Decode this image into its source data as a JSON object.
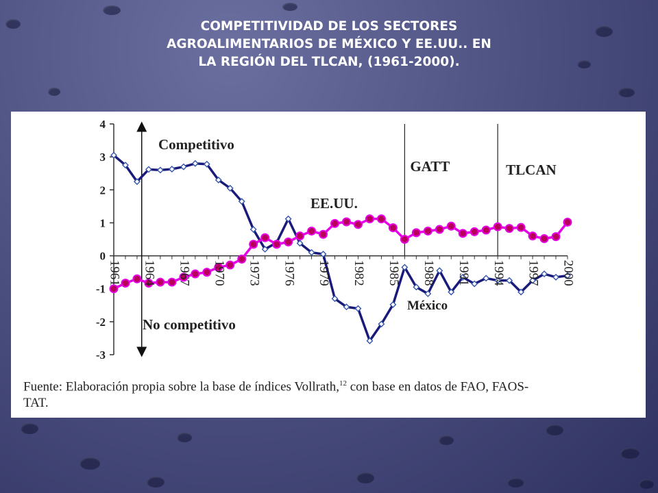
{
  "slide": {
    "title_lines": [
      "COMPETITIVIDAD DE LOS SECTORES",
      "AGROALIMENTARIOS DE MÉXICO Y EE.UU.. EN",
      "LA REGIÓN DEL TLCAN, (1961-2000)."
    ]
  },
  "figure": {
    "source_text_a": "Fuente: Elaboración propia sobre la base de índices Vollrath,",
    "source_sup": "12",
    "source_text_b": " con base en datos de FAO, FAOS-",
    "source_text_c": "TAT."
  },
  "chart_data": {
    "type": "line",
    "title": "",
    "xlabel": "",
    "ylabel": "",
    "ylim": [
      -3,
      4
    ],
    "xlim": [
      1961,
      2000
    ],
    "yticks": [
      "4",
      "3",
      "2",
      "1",
      "0",
      "-1",
      "-2",
      "-3"
    ],
    "xtick_labels": [
      "1961",
      "1964",
      "1967",
      "1970",
      "1973",
      "1976",
      "1979",
      "1982",
      "1985",
      "1988",
      "1991",
      "1994",
      "1997",
      "2000"
    ],
    "grid": false,
    "annotations": {
      "competitivo": "Competitivo",
      "no_competitivo": "No competitivo",
      "gatt": "GATT",
      "tlcan": "TLCAN",
      "usa_label": "EE.UU.",
      "mexico_label": "México"
    },
    "period_markers": [
      1986,
      1994
    ],
    "arrow_year": 1963.4,
    "x": [
      1961,
      1962,
      1963,
      1964,
      1965,
      1966,
      1967,
      1968,
      1969,
      1970,
      1971,
      1972,
      1973,
      1974,
      1975,
      1976,
      1977,
      1978,
      1979,
      1980,
      1981,
      1982,
      1983,
      1984,
      1985,
      1986,
      1987,
      1988,
      1989,
      1990,
      1991,
      1992,
      1993,
      1994,
      1995,
      1996,
      1997,
      1998,
      1999,
      2000
    ],
    "series": [
      {
        "name": "México",
        "color": "#1a1a7a",
        "marker": "open-diamond",
        "values": [
          3.05,
          2.75,
          2.25,
          2.62,
          2.6,
          2.63,
          2.7,
          2.8,
          2.78,
          2.3,
          2.05,
          1.65,
          0.8,
          0.2,
          0.4,
          1.12,
          0.38,
          0.1,
          0.05,
          -1.3,
          -1.55,
          -1.6,
          -2.58,
          -2.07,
          -1.48,
          -0.35,
          -0.95,
          -1.15,
          -0.45,
          -1.1,
          -0.65,
          -0.85,
          -0.68,
          -0.75,
          -0.75,
          -1.1,
          -0.75,
          -0.55,
          -0.65,
          -0.6
        ]
      },
      {
        "name": "EE.UU.",
        "color": "#e600e6",
        "marker": "filled-circle",
        "values": [
          -1.0,
          -0.83,
          -0.7,
          -0.83,
          -0.8,
          -0.8,
          -0.65,
          -0.55,
          -0.5,
          -0.35,
          -0.28,
          -0.1,
          0.35,
          0.55,
          0.35,
          0.42,
          0.6,
          0.75,
          0.65,
          0.98,
          1.03,
          0.95,
          1.12,
          1.12,
          0.85,
          0.5,
          0.7,
          0.75,
          0.8,
          0.9,
          0.68,
          0.73,
          0.78,
          0.88,
          0.83,
          0.86,
          0.6,
          0.52,
          0.58,
          1.02
        ]
      }
    ]
  }
}
